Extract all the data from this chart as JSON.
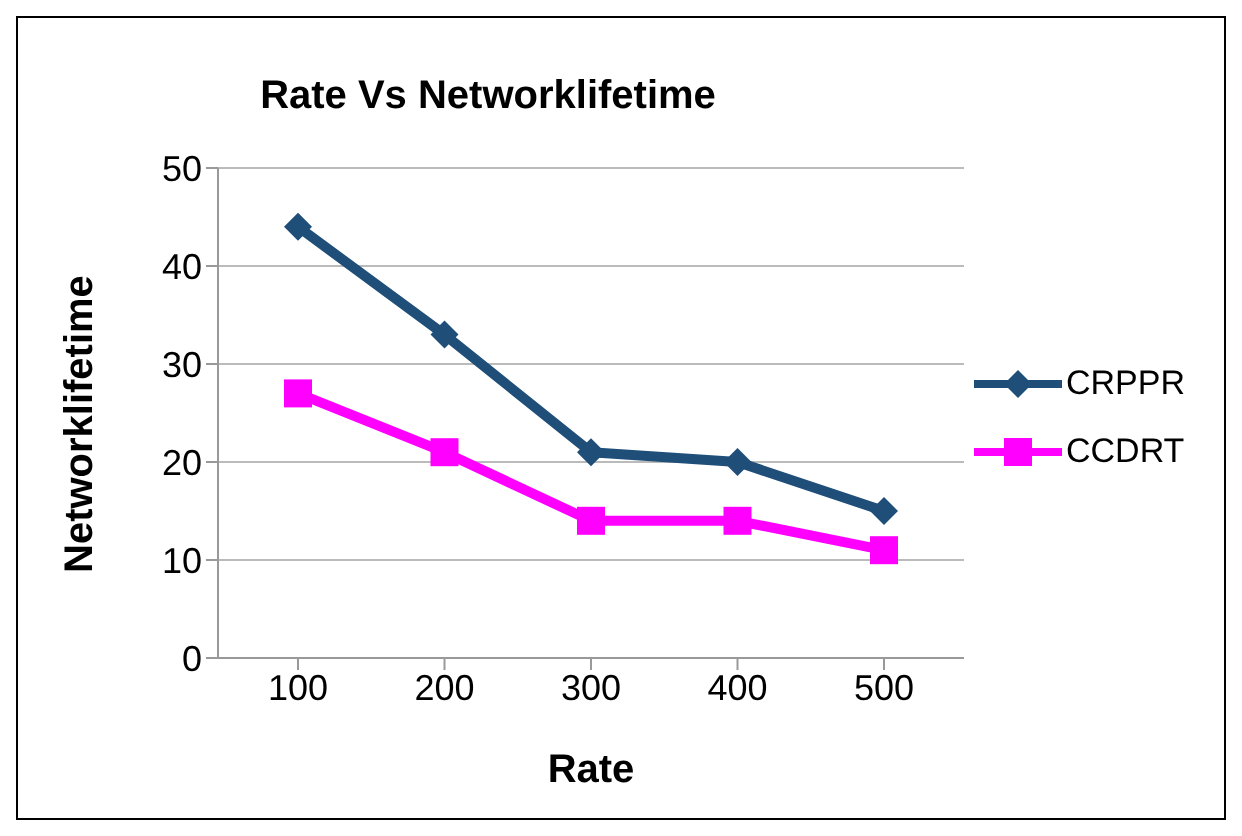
{
  "chart_data": {
    "type": "line",
    "title": "Rate Vs Networklifetime",
    "xlabel": "Rate",
    "ylabel": "Networklifetime",
    "categories": [
      "100",
      "200",
      "300",
      "400",
      "500"
    ],
    "series": [
      {
        "name": "CRPPR",
        "color": "#1f4e79",
        "values": [
          44,
          33,
          21,
          20,
          15
        ],
        "marker": "diamond"
      },
      {
        "name": "CCDRT",
        "color": "#ff00ff",
        "values": [
          27,
          21,
          14,
          14,
          11
        ],
        "marker": "square"
      }
    ],
    "ylim": [
      0,
      50
    ],
    "yticks": [
      0,
      10,
      20,
      30,
      40,
      50
    ],
    "grid": "y",
    "legend": "right",
    "line_style": "solid"
  }
}
